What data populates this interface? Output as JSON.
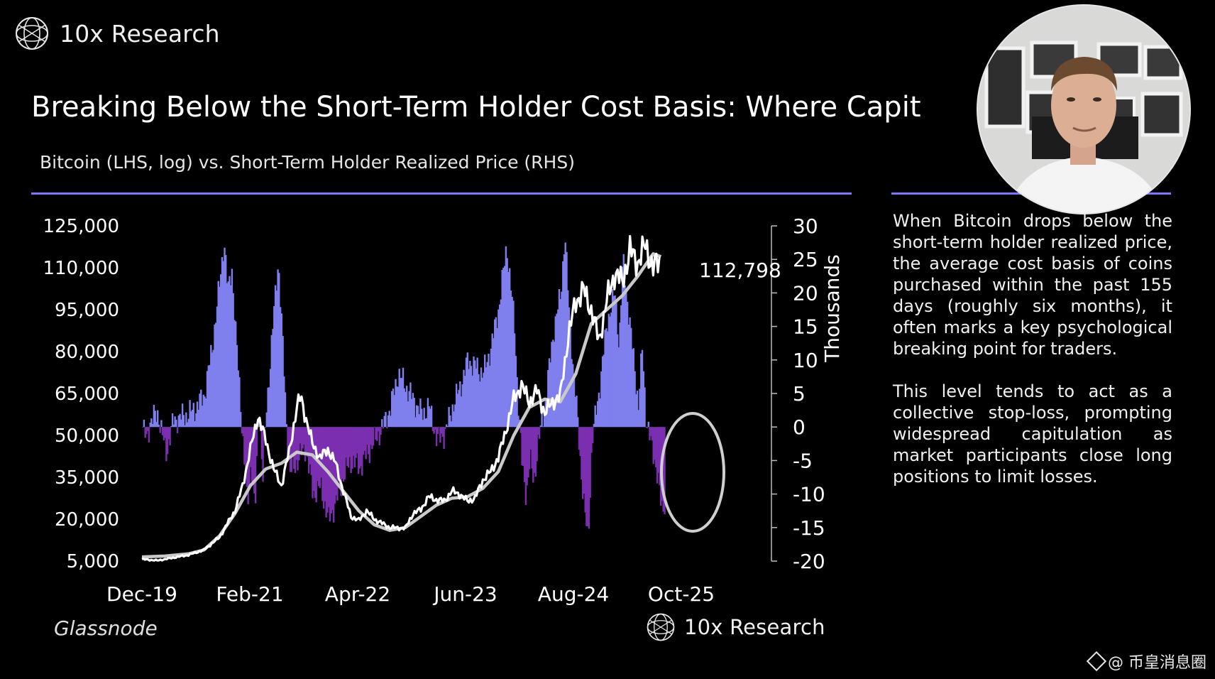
{
  "brand": {
    "name": "10x Research"
  },
  "title": "Breaking Below the Short-Term Holder Cost Basis: Where Capit",
  "subtitle": "Bitcoin (LHS, log) vs. Short-Term Holder Realized Price (RHS)",
  "source": "Glassnode",
  "watermark": "@ 币皇消息圈",
  "description": {
    "p1": "When Bitcoin drops below the short-term holder realized price, the average cost basis of coins purchased within the past 155 days (roughly six months), it often marks a key psychological breaking point for traders.",
    "p2": "This level tends to act as a collective stop-loss, prompting widespread capitulation as market participants close long positions to limit losses."
  },
  "colors": {
    "positive_bars": "#7f7fee",
    "negative_bars": "#7b2fb0",
    "price_line": "#ffffff",
    "realized_line": "#c9c9c9",
    "accent_rule": "#7b78ff"
  },
  "chart_data": {
    "type": "area",
    "x_ticks": [
      "Dec-19",
      "Feb-21",
      "Apr-22",
      "Jun-23",
      "Aug-24",
      "Oct-25"
    ],
    "y_left_ticks": [
      "125,000",
      "110,000",
      "95,000",
      "80,000",
      "65,000",
      "50,000",
      "35,000",
      "20,000",
      "5,000"
    ],
    "y_right_ticks": [
      "30",
      "25",
      "20",
      "15",
      "10",
      "5",
      "0",
      "-5",
      "-10",
      "-15",
      "-20"
    ],
    "y_right_label": "Thousands",
    "y_left_range": [
      5000,
      125000
    ],
    "y_right_range": [
      -20,
      30
    ],
    "last_value_label": "112,798",
    "annotation": "ellipse highlighting latest break below zero",
    "t_range": [
      0,
      71
    ],
    "spread_points": [
      [
        0,
        0
      ],
      [
        0.5,
        -2
      ],
      [
        1,
        1
      ],
      [
        2,
        2
      ],
      [
        3,
        -4
      ],
      [
        4,
        1
      ],
      [
        6,
        2
      ],
      [
        7,
        3
      ],
      [
        8,
        5
      ],
      [
        9,
        12
      ],
      [
        10,
        22
      ],
      [
        10.5,
        28
      ],
      [
        11,
        20
      ],
      [
        11.5,
        24
      ],
      [
        12,
        14
      ],
      [
        12.5,
        6
      ],
      [
        13,
        -3
      ],
      [
        13.5,
        -12
      ],
      [
        14,
        -5
      ],
      [
        14.5,
        -13
      ],
      [
        15,
        4
      ],
      [
        15.5,
        -8
      ],
      [
        16,
        3
      ],
      [
        16.5,
        10
      ],
      [
        17,
        18
      ],
      [
        17.5,
        25
      ],
      [
        18,
        14
      ],
      [
        18.5,
        2
      ],
      [
        19,
        -7
      ],
      [
        20,
        -5
      ],
      [
        21,
        -3
      ],
      [
        22,
        -10
      ],
      [
        23,
        -9
      ],
      [
        24,
        -14
      ],
      [
        25,
        -11
      ],
      [
        26,
        -7
      ],
      [
        27,
        -5
      ],
      [
        28,
        -6
      ],
      [
        29,
        -4
      ],
      [
        30,
        -2
      ],
      [
        31,
        0
      ],
      [
        32,
        3
      ],
      [
        33,
        8
      ],
      [
        34,
        6
      ],
      [
        35,
        4
      ],
      [
        36,
        2
      ],
      [
        37,
        3
      ],
      [
        38,
        -2
      ],
      [
        39,
        -1
      ],
      [
        40,
        3
      ],
      [
        41,
        6
      ],
      [
        42,
        10
      ],
      [
        43,
        9
      ],
      [
        44,
        8
      ],
      [
        45,
        12
      ],
      [
        46,
        18
      ],
      [
        47,
        27
      ],
      [
        48,
        15
      ],
      [
        48.5,
        3
      ],
      [
        49,
        -6
      ],
      [
        49.5,
        -10
      ],
      [
        50,
        -5
      ],
      [
        50.5,
        -8
      ],
      [
        51,
        -3
      ],
      [
        52,
        4
      ],
      [
        53,
        14
      ],
      [
        54,
        20
      ],
      [
        54.5,
        29
      ],
      [
        55,
        18
      ],
      [
        55.5,
        10
      ],
      [
        56,
        3
      ],
      [
        56.5,
        -5
      ],
      [
        57,
        -12
      ],
      [
        57.5,
        -17
      ],
      [
        58,
        -2
      ],
      [
        59,
        6
      ],
      [
        60,
        16
      ],
      [
        61,
        20
      ],
      [
        61.5,
        12
      ],
      [
        62,
        25
      ],
      [
        63,
        14
      ],
      [
        63.5,
        9
      ],
      [
        64,
        3
      ],
      [
        64.5,
        12
      ],
      [
        65,
        1
      ],
      [
        65.5,
        -2
      ],
      [
        66,
        -4
      ],
      [
        66.5,
        -8
      ],
      [
        67,
        -12
      ],
      [
        67.5,
        -11
      ]
    ],
    "price_points": [
      [
        0,
        5700
      ],
      [
        2,
        5200
      ],
      [
        4,
        6200
      ],
      [
        6,
        7200
      ],
      [
        8,
        9000
      ],
      [
        10,
        13500
      ],
      [
        12,
        23000
      ],
      [
        13,
        32000
      ],
      [
        14,
        45000
      ],
      [
        15,
        57000
      ],
      [
        16,
        48000
      ],
      [
        17,
        38000
      ],
      [
        18,
        32000
      ],
      [
        19,
        44000
      ],
      [
        20,
        60000
      ],
      [
        20.5,
        64000
      ],
      [
        21,
        58000
      ],
      [
        22,
        47000
      ],
      [
        23,
        42000
      ],
      [
        24,
        45000
      ],
      [
        25,
        40000
      ],
      [
        26,
        30000
      ],
      [
        27,
        21000
      ],
      [
        28,
        19500
      ],
      [
        29,
        23000
      ],
      [
        30,
        20000
      ],
      [
        32,
        17000
      ],
      [
        34,
        16800
      ],
      [
        35,
        22000
      ],
      [
        36,
        23500
      ],
      [
        37,
        28000
      ],
      [
        38,
        27000
      ],
      [
        39,
        26500
      ],
      [
        40,
        30000
      ],
      [
        41,
        29000
      ],
      [
        42,
        26500
      ],
      [
        43,
        27500
      ],
      [
        44,
        34000
      ],
      [
        45,
        37000
      ],
      [
        46,
        42000
      ],
      [
        47,
        52000
      ],
      [
        48,
        63000
      ],
      [
        49,
        68000
      ],
      [
        50,
        62000
      ],
      [
        51,
        66000
      ],
      [
        52,
        58000
      ],
      [
        53,
        62000
      ],
      [
        54,
        64000
      ],
      [
        55,
        85000
      ],
      [
        56,
        98000
      ],
      [
        57,
        102000
      ],
      [
        58,
        95000
      ],
      [
        59,
        84000
      ],
      [
        60,
        98000
      ],
      [
        61,
        108000
      ],
      [
        62,
        105000
      ],
      [
        63,
        116000
      ],
      [
        64,
        112000
      ],
      [
        65,
        118000
      ],
      [
        66,
        110000
      ],
      [
        67,
        112798
      ]
    ],
    "realized_points": [
      [
        0,
        6500
      ],
      [
        3,
        6800
      ],
      [
        6,
        7600
      ],
      [
        8,
        9000
      ],
      [
        10,
        14000
      ],
      [
        12,
        22000
      ],
      [
        14,
        32000
      ],
      [
        16,
        38000
      ],
      [
        18,
        40000
      ],
      [
        20,
        44000
      ],
      [
        22,
        43000
      ],
      [
        24,
        37000
      ],
      [
        26,
        30000
      ],
      [
        28,
        23000
      ],
      [
        30,
        18000
      ],
      [
        32,
        16000
      ],
      [
        34,
        17000
      ],
      [
        36,
        21000
      ],
      [
        38,
        25000
      ],
      [
        40,
        27500
      ],
      [
        42,
        28000
      ],
      [
        44,
        31000
      ],
      [
        46,
        37000
      ],
      [
        48,
        50000
      ],
      [
        50,
        60000
      ],
      [
        52,
        63000
      ],
      [
        54,
        62000
      ],
      [
        56,
        72000
      ],
      [
        58,
        90000
      ],
      [
        60,
        95000
      ],
      [
        62,
        100000
      ],
      [
        64,
        107000
      ],
      [
        66,
        115000
      ],
      [
        67,
        114000
      ]
    ]
  }
}
